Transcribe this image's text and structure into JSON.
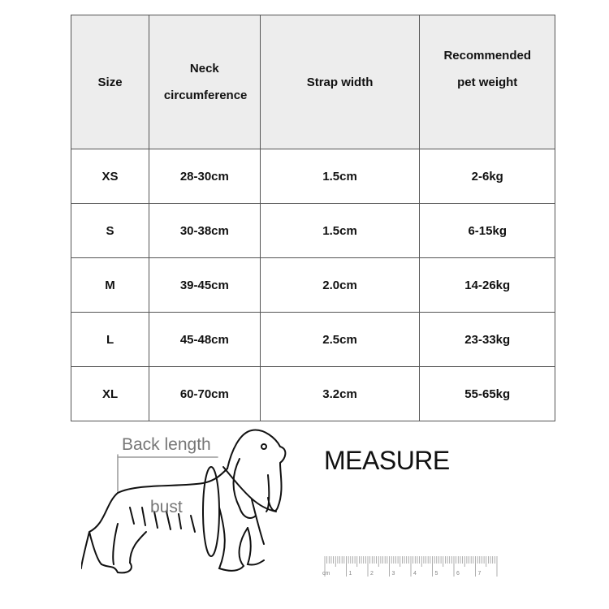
{
  "table": {
    "headers": [
      "Size",
      "Neck circumference",
      "Strap width",
      "Recommended pet weight"
    ],
    "rows": [
      [
        "XS",
        "28-30cm",
        "1.5cm",
        "2-6kg"
      ],
      [
        "S",
        "30-38cm",
        "1.5cm",
        "6-15kg"
      ],
      [
        "M",
        "39-45cm",
        "2.0cm",
        "14-26kg"
      ],
      [
        "L",
        "45-48cm",
        "2.5cm",
        "23-33kg"
      ],
      [
        "XL",
        "60-70cm",
        "3.2cm",
        "55-65kg"
      ]
    ]
  },
  "diagram": {
    "back_length_label": "Back length",
    "bust_label": "bust",
    "measure_title": "MEASURE",
    "ruler_unit": "cm",
    "ruler_numbers": [
      "1",
      "2",
      "3",
      "4",
      "5",
      "6",
      "7"
    ]
  },
  "colors": {
    "header_bg": "#ededed",
    "border": "#555555",
    "label_gray": "#777777"
  }
}
